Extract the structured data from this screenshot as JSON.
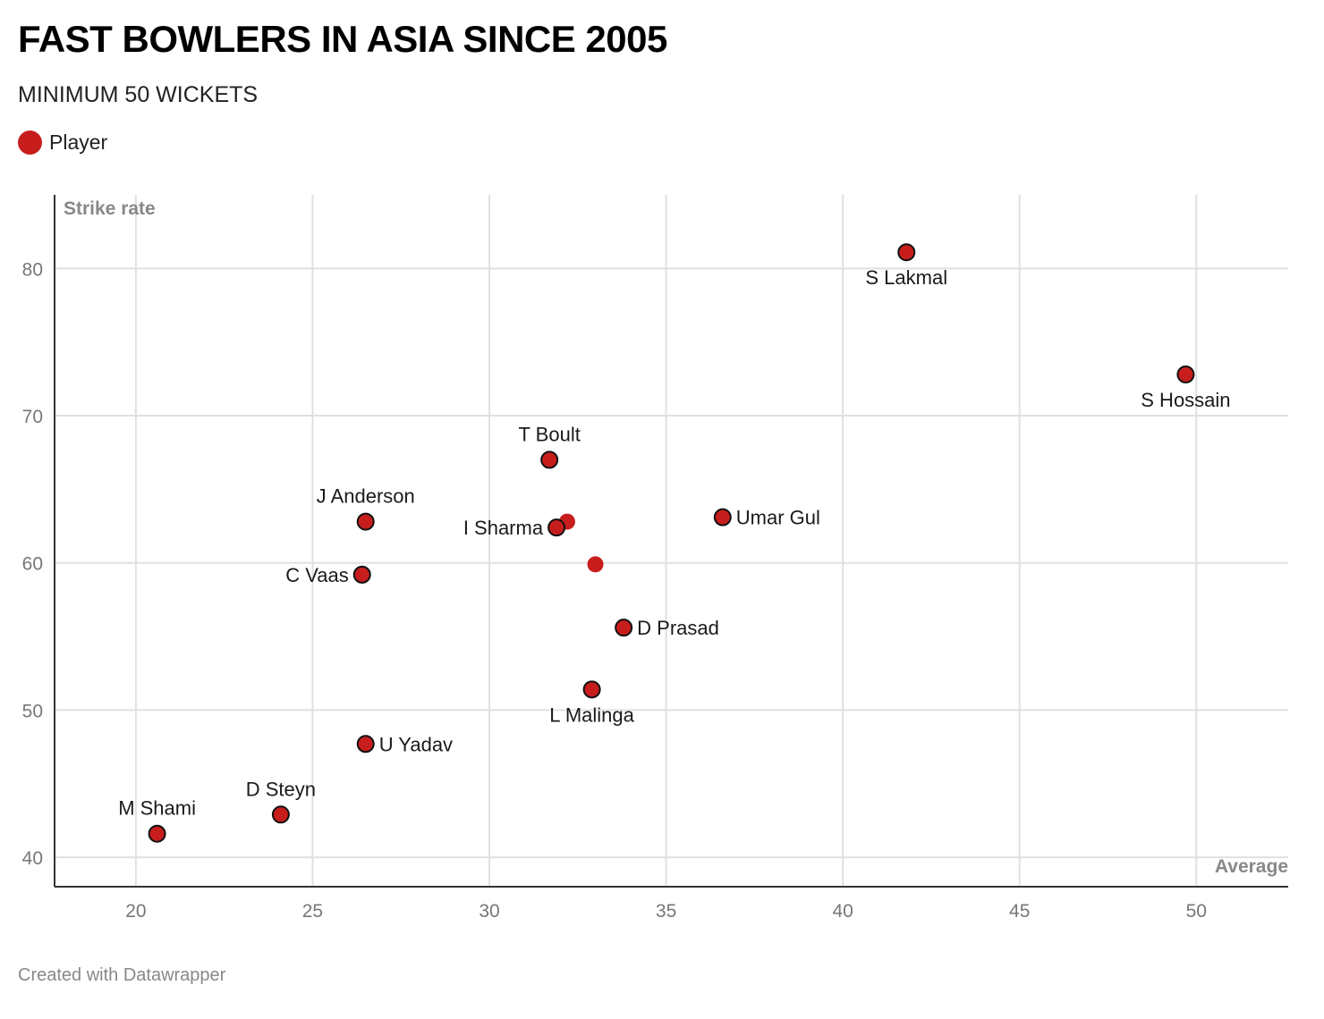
{
  "title": "FAST BOWLERS IN ASIA SINCE 2005",
  "subtitle": "MINIMUM 50 WICKETS",
  "legend": {
    "label": "Player",
    "color": "#c71e1d"
  },
  "footer": "Created with Datawrapper",
  "chart_data": {
    "type": "scatter",
    "xlabel": "Average",
    "ylabel": "Strike rate",
    "xlim": [
      17.7,
      52.6
    ],
    "ylim": [
      38,
      85
    ],
    "x_ticks": [
      20,
      25,
      30,
      35,
      40,
      45,
      50
    ],
    "y_ticks": [
      40,
      50,
      60,
      70,
      80
    ],
    "grid": true,
    "marker_color": "#c71e1d",
    "points": [
      {
        "name": "S Lakmal",
        "x": 41.8,
        "y": 81.1,
        "label_pos": "below"
      },
      {
        "name": "S Hossain",
        "x": 49.7,
        "y": 72.8,
        "label_pos": "below"
      },
      {
        "name": "T Boult",
        "x": 31.7,
        "y": 67.0,
        "label_pos": "above"
      },
      {
        "name": "J Anderson",
        "x": 26.5,
        "y": 62.8,
        "label_pos": "above"
      },
      {
        "name": "",
        "x": 32.2,
        "y": 62.8,
        "label_pos": "none",
        "outline": false
      },
      {
        "name": "I Sharma",
        "x": 31.9,
        "y": 62.4,
        "label_pos": "left"
      },
      {
        "name": "Umar Gul",
        "x": 36.6,
        "y": 63.1,
        "label_pos": "right"
      },
      {
        "name": "",
        "x": 33.0,
        "y": 59.9,
        "label_pos": "none",
        "outline": false
      },
      {
        "name": "C Vaas",
        "x": 26.4,
        "y": 59.2,
        "label_pos": "left"
      },
      {
        "name": "D Prasad",
        "x": 33.8,
        "y": 55.6,
        "label_pos": "right"
      },
      {
        "name": "L Malinga",
        "x": 32.9,
        "y": 51.4,
        "label_pos": "below"
      },
      {
        "name": "U Yadav",
        "x": 26.5,
        "y": 47.7,
        "label_pos": "right"
      },
      {
        "name": "D Steyn",
        "x": 24.1,
        "y": 42.9,
        "label_pos": "above"
      },
      {
        "name": "M Shami",
        "x": 20.6,
        "y": 41.6,
        "label_pos": "above"
      }
    ]
  }
}
